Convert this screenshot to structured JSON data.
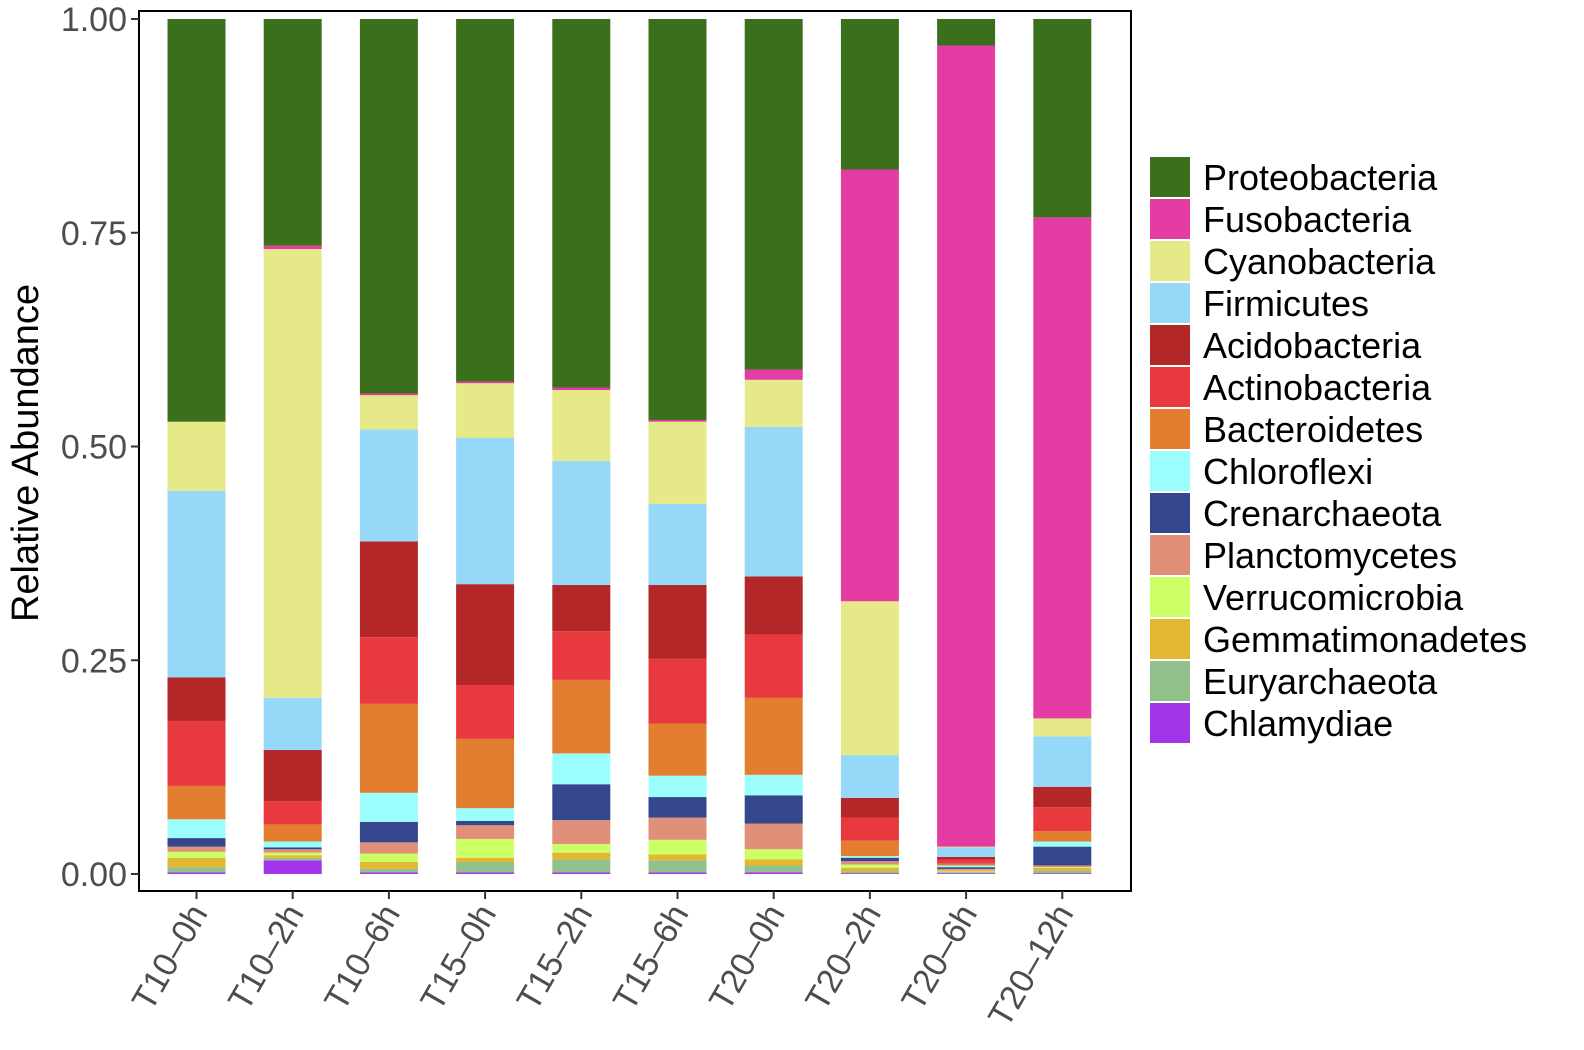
{
  "chart_data": {
    "type": "bar",
    "stacked": true,
    "title": "",
    "xlabel": "",
    "ylabel": "Relative Abundance",
    "ylim": [
      0,
      1
    ],
    "yticks": [
      "0.00",
      "0.25",
      "0.50",
      "0.75",
      "1.00"
    ],
    "grid": false,
    "legend_position": "right",
    "categories": [
      "T10–0h",
      "T10–2h",
      "T10–6h",
      "T15–0h",
      "T15–2h",
      "T15–6h",
      "T20–0h",
      "T20–2h",
      "T20–6h",
      "T20–12h"
    ],
    "series": [
      {
        "name": "Chlamydiae",
        "color": "#a234ea",
        "values": [
          0.002,
          0.016,
          0.002,
          0.002,
          0.002,
          0.002,
          0.002,
          0.001,
          0.001,
          0.001
        ]
      },
      {
        "name": "Euryarchaeota",
        "color": "#92c28c",
        "values": [
          0.006,
          0.003,
          0.004,
          0.012,
          0.015,
          0.014,
          0.008,
          0.002,
          0.001,
          0.003
        ]
      },
      {
        "name": "Gemmatimonadetes",
        "color": "#e2b731",
        "values": [
          0.011,
          0.003,
          0.008,
          0.005,
          0.008,
          0.007,
          0.007,
          0.004,
          0.001,
          0.003
        ]
      },
      {
        "name": "Verrucomicrobia",
        "color": "#ccff66",
        "values": [
          0.007,
          0.003,
          0.01,
          0.022,
          0.01,
          0.017,
          0.012,
          0.004,
          0.001,
          0.001
        ]
      },
      {
        "name": "Planctomycetes",
        "color": "#e09079",
        "values": [
          0.006,
          0.004,
          0.013,
          0.016,
          0.028,
          0.026,
          0.03,
          0.004,
          0.002,
          0.002
        ]
      },
      {
        "name": "Crenarchaeota",
        "color": "#33468e",
        "values": [
          0.01,
          0.002,
          0.024,
          0.005,
          0.042,
          0.024,
          0.033,
          0.004,
          0.002,
          0.022
        ]
      },
      {
        "name": "Chloroflexi",
        "color": "#9cfdfd",
        "values": [
          0.022,
          0.007,
          0.034,
          0.015,
          0.036,
          0.025,
          0.024,
          0.002,
          0.002,
          0.006
        ]
      },
      {
        "name": "Bacteroidetes",
        "color": "#e37e31",
        "values": [
          0.039,
          0.02,
          0.104,
          0.081,
          0.086,
          0.061,
          0.09,
          0.018,
          0.002,
          0.012
        ]
      },
      {
        "name": "Actinobacteria",
        "color": "#e83a3e",
        "values": [
          0.076,
          0.027,
          0.078,
          0.063,
          0.057,
          0.076,
          0.074,
          0.027,
          0.005,
          0.028
        ]
      },
      {
        "name": "Acidobacteria",
        "color": "#b32728",
        "values": [
          0.051,
          0.06,
          0.112,
          0.118,
          0.054,
          0.086,
          0.068,
          0.023,
          0.003,
          0.024
        ]
      },
      {
        "name": "Firmicutes",
        "color": "#96d8f7",
        "values": [
          0.218,
          0.061,
          0.131,
          0.171,
          0.145,
          0.095,
          0.175,
          0.05,
          0.011,
          0.059
        ]
      },
      {
        "name": "Cyanobacteria",
        "color": "#e6e987",
        "values": [
          0.081,
          0.525,
          0.04,
          0.064,
          0.083,
          0.096,
          0.055,
          0.18,
          0.001,
          0.021
        ]
      },
      {
        "name": "Fusobacteria",
        "color": "#e53ca3",
        "values": [
          0.0,
          0.004,
          0.002,
          0.002,
          0.003,
          0.002,
          0.012,
          0.505,
          0.937,
          0.586
        ]
      },
      {
        "name": "Proteobacteria",
        "color": "#3a701c",
        "values": [
          0.471,
          0.265,
          0.438,
          0.424,
          0.431,
          0.469,
          0.41,
          0.176,
          0.031,
          0.232
        ]
      }
    ],
    "legend_order": [
      "Proteobacteria",
      "Fusobacteria",
      "Cyanobacteria",
      "Firmicutes",
      "Acidobacteria",
      "Actinobacteria",
      "Bacteroidetes",
      "Chloroflexi",
      "Crenarchaeota",
      "Planctomycetes",
      "Verrucomicrobia",
      "Gemmatimonadetes",
      "Euryarchaeota",
      "Chlamydiae"
    ]
  }
}
